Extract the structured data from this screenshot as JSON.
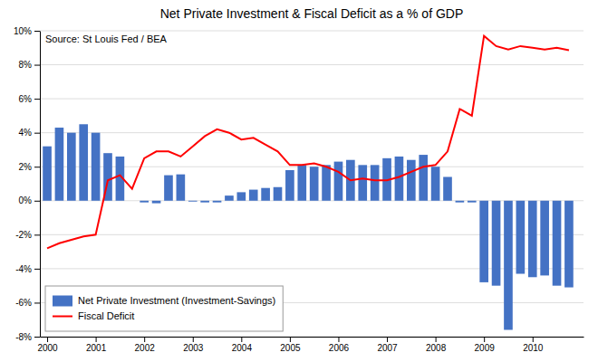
{
  "chart_data": {
    "type": "bar",
    "title": "Net Private Investment & Fiscal Deficit as a % of GDP",
    "annotations": [
      "Source: St Louis Fed / BEA"
    ],
    "x": [
      2000.0,
      2000.25,
      2000.5,
      2000.75,
      2001.0,
      2001.25,
      2001.5,
      2001.75,
      2002.0,
      2002.25,
      2002.5,
      2002.75,
      2003.0,
      2003.25,
      2003.5,
      2003.75,
      2004.0,
      2004.25,
      2004.5,
      2004.75,
      2005.0,
      2005.25,
      2005.5,
      2005.75,
      2006.0,
      2006.25,
      2006.5,
      2006.75,
      2007.0,
      2007.25,
      2007.5,
      2007.75,
      2008.0,
      2008.25,
      2008.5,
      2008.75,
      2009.0,
      2009.25,
      2009.5,
      2009.75,
      2010.0,
      2010.25,
      2010.5,
      2010.75
    ],
    "series": [
      {
        "name": "Net Private Investment (Investment-Savings)",
        "type": "bar",
        "color": "#4472c4",
        "values": [
          3.2,
          4.3,
          4.0,
          4.5,
          4.0,
          2.8,
          2.6,
          0.0,
          -0.1,
          -0.15,
          1.5,
          1.55,
          -0.05,
          -0.1,
          -0.1,
          0.3,
          0.5,
          0.65,
          0.75,
          0.8,
          1.8,
          2.1,
          2.0,
          2.1,
          2.3,
          2.4,
          2.1,
          2.1,
          2.5,
          2.6,
          2.4,
          2.7,
          2.0,
          1.4,
          -0.1,
          -0.1,
          -4.8,
          -5.0,
          -7.6,
          -4.3,
          -4.5,
          -4.4,
          -5.0,
          -5.1
        ]
      },
      {
        "name": "Fiscal Deficit",
        "type": "line",
        "color": "#ff0000",
        "values": [
          -2.8,
          -2.5,
          -2.3,
          -2.1,
          -2.0,
          1.2,
          1.5,
          0.7,
          2.5,
          2.9,
          2.9,
          2.6,
          3.2,
          3.8,
          4.2,
          4.0,
          3.6,
          3.7,
          3.3,
          2.9,
          2.1,
          2.1,
          2.2,
          2.0,
          1.7,
          1.2,
          1.3,
          1.2,
          1.2,
          1.4,
          1.7,
          2.0,
          2.1,
          2.9,
          5.4,
          5.0,
          9.7,
          9.1,
          8.9,
          9.1,
          9.0,
          8.9,
          9.0,
          8.85
        ]
      }
    ],
    "xlim": [
      1999.85,
      2011.05
    ],
    "xticks": [
      2000,
      2001,
      2002,
      2003,
      2004,
      2005,
      2006,
      2007,
      2008,
      2009,
      2010
    ],
    "ylim": [
      -8,
      10
    ],
    "yticks": [
      {
        "value": -8,
        "label": "-8%"
      },
      {
        "value": -6,
        "label": "-6%"
      },
      {
        "value": -4,
        "label": "-4%"
      },
      {
        "value": -2,
        "label": "-2%"
      },
      {
        "value": 0,
        "label": "0%"
      },
      {
        "value": 2,
        "label": "2%"
      },
      {
        "value": 4,
        "label": "4%"
      },
      {
        "value": 6,
        "label": "6%"
      },
      {
        "value": 8,
        "label": "8%"
      },
      {
        "value": 10,
        "label": "10%"
      }
    ],
    "grid": true,
    "legend": "lower left"
  }
}
